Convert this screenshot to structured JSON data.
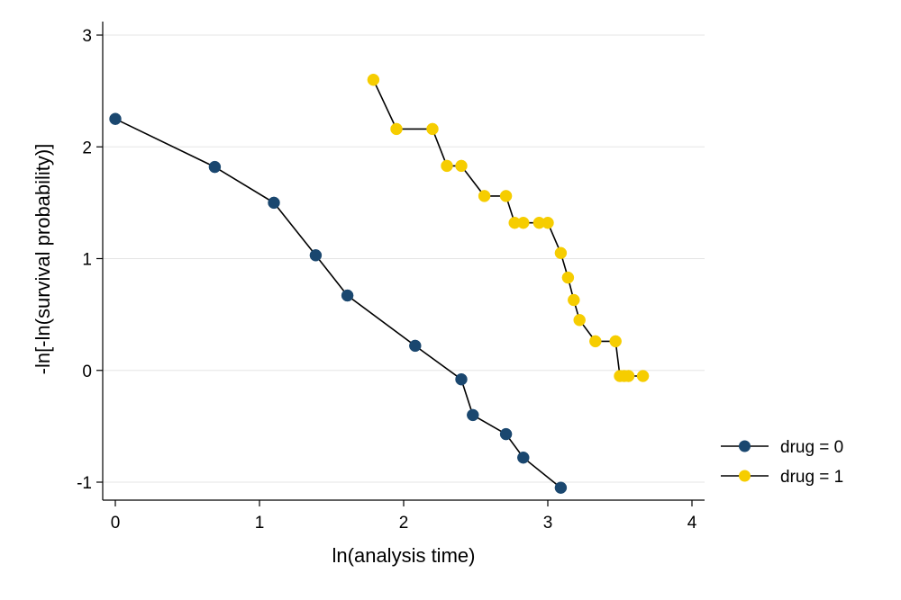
{
  "chart_data": {
    "type": "line",
    "title": "",
    "xlabel": "ln(analysis time)",
    "ylabel": "-ln[-ln(survival probability)]",
    "xlim": [
      0,
      4
    ],
    "ylim": [
      -1,
      3
    ],
    "xticks": [
      0,
      1,
      2,
      3,
      4
    ],
    "yticks": [
      -1,
      0,
      1,
      2,
      3
    ],
    "xtick_labels": [
      "0",
      "1",
      "2",
      "3",
      "4"
    ],
    "ytick_labels": [
      "-1",
      "0",
      "1",
      "2",
      "3"
    ],
    "grid": true,
    "legend_position": "lower-right",
    "series": [
      {
        "name": "drug = 0",
        "color": "#1a476f",
        "x": [
          0.0,
          0.69,
          1.1,
          1.39,
          1.61,
          2.08,
          2.4,
          2.48,
          2.71,
          2.83,
          3.09
        ],
        "y": [
          2.25,
          1.82,
          1.5,
          1.03,
          0.67,
          0.22,
          -0.08,
          -0.4,
          -0.57,
          -0.78,
          -1.05
        ]
      },
      {
        "name": "drug = 1",
        "color": "#f6cd00",
        "x": [
          1.79,
          1.95,
          2.2,
          2.3,
          2.4,
          2.56,
          2.71,
          2.77,
          2.83,
          2.94,
          3.0,
          3.09,
          3.14,
          3.18,
          3.22,
          3.33,
          3.47,
          3.5,
          3.53,
          3.56,
          3.66
        ],
        "y": [
          2.6,
          2.16,
          2.16,
          1.83,
          1.83,
          1.56,
          1.56,
          1.32,
          1.32,
          1.32,
          1.32,
          1.05,
          0.83,
          0.63,
          0.45,
          0.26,
          0.26,
          -0.05,
          -0.05,
          -0.05,
          -0.05
        ]
      }
    ]
  }
}
